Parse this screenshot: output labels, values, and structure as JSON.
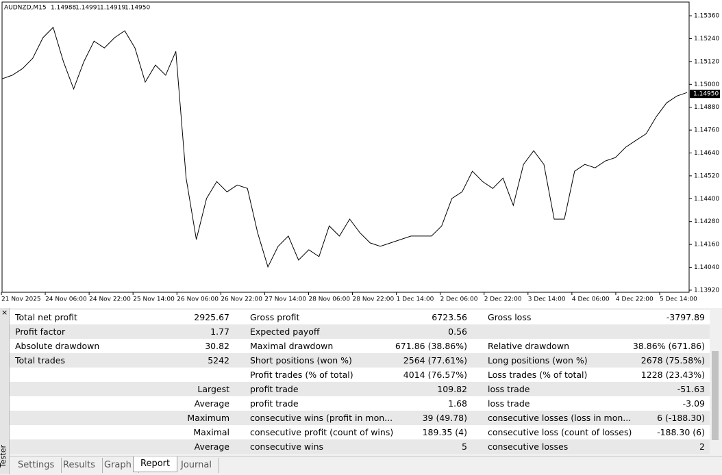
{
  "header": {
    "symbol": "AUDNZD,M15",
    "ohlc": [
      "1.14988",
      "1.14991",
      "1.14919",
      "1.14950"
    ]
  },
  "chart_data": {
    "type": "line",
    "color": "#000000",
    "xticks": [
      "21 Nov 2025",
      "24 Nov 06:00",
      "24 Nov 22:00",
      "25 Nov 14:00",
      "26 Nov 06:00",
      "26 Nov 22:00",
      "27 Nov 14:00",
      "28 Nov 06:00",
      "28 Nov 22:00",
      "1 Dec 14:00",
      "2 Dec 06:00",
      "2 Dec 22:00",
      "3 Dec 14:00",
      "4 Dec 06:00",
      "4 Dec 22:00",
      "5 Dec 14:00"
    ],
    "values": [
      1.15029,
      1.15048,
      1.15083,
      1.15137,
      1.15245,
      1.15299,
      1.15119,
      1.14976,
      1.15119,
      1.15227,
      1.15191,
      1.15245,
      1.15281,
      1.15191,
      1.15012,
      1.15101,
      1.15048,
      1.15173,
      1.14508,
      1.14186,
      1.14401,
      1.1449,
      1.14436,
      1.14472,
      1.14454,
      1.14221,
      1.14042,
      1.1415,
      1.14204,
      1.14078,
      1.14132,
      1.14096,
      1.14257,
      1.14204,
      1.14293,
      1.14221,
      1.14168,
      1.1415,
      1.14168,
      1.14186,
      1.14204,
      1.14204,
      1.14204,
      1.14257,
      1.14401,
      1.14436,
      1.14544,
      1.1449,
      1.14454,
      1.14508,
      1.14365,
      1.1458,
      1.14652,
      1.1458,
      1.14293,
      1.14293,
      1.14544,
      1.1458,
      1.14562,
      1.14598,
      1.14616,
      1.1467,
      1.14706,
      1.14741,
      1.14831,
      1.14903,
      1.14939,
      1.14957
    ],
    "ylim": [
      1.13909,
      1.15432
    ],
    "yticks": [
      {
        "value": 1.1536,
        "label": "1.15360"
      },
      {
        "value": 1.1524,
        "label": "1.15240"
      },
      {
        "value": 1.1512,
        "label": "1.15120"
      },
      {
        "value": 1.15,
        "label": "1.15000"
      },
      {
        "value": 1.1488,
        "label": "1.14880"
      },
      {
        "value": 1.1476,
        "label": "1.14760"
      },
      {
        "value": 1.1464,
        "label": "1.14640"
      },
      {
        "value": 1.1452,
        "label": "1.14520"
      },
      {
        "value": 1.144,
        "label": "1.14400"
      },
      {
        "value": 1.1428,
        "label": "1.14280"
      },
      {
        "value": 1.1416,
        "label": "1.14160"
      },
      {
        "value": 1.1404,
        "label": "1.14040"
      },
      {
        "value": 1.1392,
        "label": "1.13920"
      }
    ],
    "last_price": {
      "value": 1.1495,
      "label": "1.14950"
    }
  },
  "report": {
    "rows": [
      {
        "c0": "Total net profit",
        "c1": "2925.67",
        "c2": "Gross profit",
        "c3": "6723.56",
        "c4": "Gross loss",
        "c5": "-3797.89"
      },
      {
        "c0": "Profit factor",
        "c1": "1.77",
        "c2": "Expected payoff",
        "c3": "0.56"
      },
      {
        "c0": "Absolute drawdown",
        "c1": "30.82",
        "c2": "Maximal drawdown",
        "c3": "671.86 (38.86%)",
        "c4": "Relative drawdown",
        "c5": "38.86% (671.86)"
      },
      {
        "c0": "Total trades",
        "c1": "5242",
        "c2": "Short positions (won %)",
        "c3": "2564 (77.61%)",
        "c4": "Long positions (won %)",
        "c5": "2678 (75.58%)"
      },
      {
        "c2": "Profit trades (% of total)",
        "c3": "4014 (76.57%)",
        "c4": "Loss trades (% of total)",
        "c5": "1228 (23.43%)"
      },
      {
        "c1": "Largest",
        "c2": "profit trade",
        "c3": "109.82",
        "c4": "loss trade",
        "c5": "-51.63"
      },
      {
        "c1": "Average",
        "c2": "profit trade",
        "c3": "1.68",
        "c4": "loss trade",
        "c5": "-3.09"
      },
      {
        "c1": "Maximum",
        "c2": "consecutive wins (profit in mon...",
        "c3": "39 (49.78)",
        "c4": "consecutive losses (loss in mon...",
        "c5": "6 (-188.30)"
      },
      {
        "c1": "Maximal",
        "c2": "consecutive profit (count of wins)",
        "c3": "189.35 (4)",
        "c4": "consecutive loss (count of losses)",
        "c5": "-188.30 (6)"
      },
      {
        "c1": "Average",
        "c2": "consecutive wins",
        "c3": "5",
        "c4": "consecutive losses",
        "c5": "2"
      }
    ]
  },
  "side_label": "Tester",
  "tabs": [
    "Settings",
    "Results",
    "Graph",
    "Report",
    "Journal"
  ],
  "active_tab": "Report"
}
